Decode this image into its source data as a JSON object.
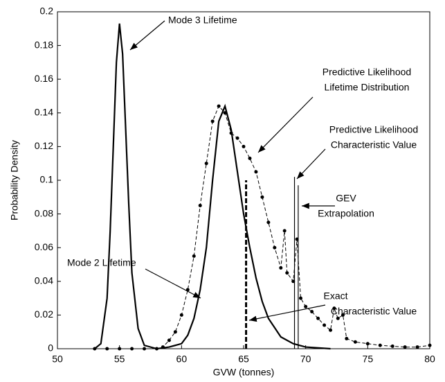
{
  "chart_data": {
    "type": "line",
    "xlabel": "GVW (tonnes)",
    "ylabel": "Probability Density",
    "xlim": [
      50,
      80
    ],
    "ylim": [
      0,
      0.2
    ],
    "xticks": [
      50,
      55,
      60,
      65,
      70,
      75,
      80
    ],
    "yticks": [
      0,
      0.02,
      0.04,
      0.06,
      0.08,
      0.1,
      0.12,
      0.14,
      0.16,
      0.18,
      0.2
    ],
    "series": [
      {
        "color": "#000000",
        "style": "solid",
        "markers": false,
        "x": [
          53,
          53.5,
          54,
          54.25,
          54.5,
          54.75,
          55,
          55.25,
          55.5,
          55.75,
          56,
          56.5,
          57,
          58
        ],
        "values": [
          0,
          0.003,
          0.03,
          0.07,
          0.12,
          0.17,
          0.193,
          0.175,
          0.13,
          0.085,
          0.045,
          0.012,
          0.002,
          0
        ]
      },
      {
        "color": "#000000",
        "style": "solid",
        "markers": false,
        "x": [
          58,
          59,
          60,
          60.5,
          61,
          61.5,
          62,
          62.5,
          63,
          63.5,
          64,
          64.5,
          65,
          65.5,
          66,
          66.5,
          67,
          68,
          69,
          70,
          72
        ],
        "values": [
          0,
          0.001,
          0.003,
          0.008,
          0.018,
          0.035,
          0.06,
          0.1,
          0.135,
          0.144,
          0.13,
          0.105,
          0.08,
          0.06,
          0.042,
          0.028,
          0.018,
          0.007,
          0.003,
          0.001,
          0
        ]
      },
      {
        "color": "#000000",
        "style": "dashed",
        "markers": true,
        "x": [
          53,
          54,
          55,
          56,
          57,
          58,
          58.5,
          59,
          59.5,
          60,
          60.5,
          61,
          61.5,
          62,
          62.5,
          63,
          63.5,
          64,
          64.5,
          65,
          65.5,
          66,
          66.5,
          67,
          67.5,
          68,
          68.3,
          68.5,
          69,
          69.3,
          69.6,
          70,
          70.5,
          71,
          71.5,
          72,
          72.3,
          72.6,
          73,
          73.3,
          74,
          75,
          76,
          77,
          78,
          79,
          80
        ],
        "values": [
          0,
          0,
          0,
          0,
          0,
          0,
          0.001,
          0.005,
          0.01,
          0.02,
          0.035,
          0.055,
          0.085,
          0.11,
          0.135,
          0.144,
          0.14,
          0.128,
          0.125,
          0.12,
          0.113,
          0.105,
          0.09,
          0.075,
          0.06,
          0.048,
          0.07,
          0.045,
          0.04,
          0.065,
          0.03,
          0.025,
          0.022,
          0.018,
          0.014,
          0.011,
          0.024,
          0.018,
          0.02,
          0.006,
          0.004,
          0.003,
          0.002,
          0.0015,
          0.001,
          0.001,
          0.002
        ]
      }
    ],
    "reference_lines": [
      {
        "x": 65.2,
        "top": 0.1,
        "style": "dashed"
      },
      {
        "x": 69.1,
        "top": 0.102,
        "style": "solid"
      },
      {
        "x": 69.4,
        "top": 0.097,
        "style": "solid"
      }
    ],
    "annotations": [
      {
        "lines": [
          "Mode 3 Lifetime"
        ]
      },
      {
        "lines": [
          "Predictive Likelihood",
          "Lifetime Distribution"
        ]
      },
      {
        "lines": [
          "Predictive Likelihood",
          "Characteristic Value"
        ]
      },
      {
        "lines": [
          "GEV",
          "Extrapolation"
        ]
      },
      {
        "lines": [
          "Exact",
          "Characteristic Value"
        ]
      },
      {
        "lines": [
          "Mode 2 Lifetime"
        ]
      }
    ]
  }
}
